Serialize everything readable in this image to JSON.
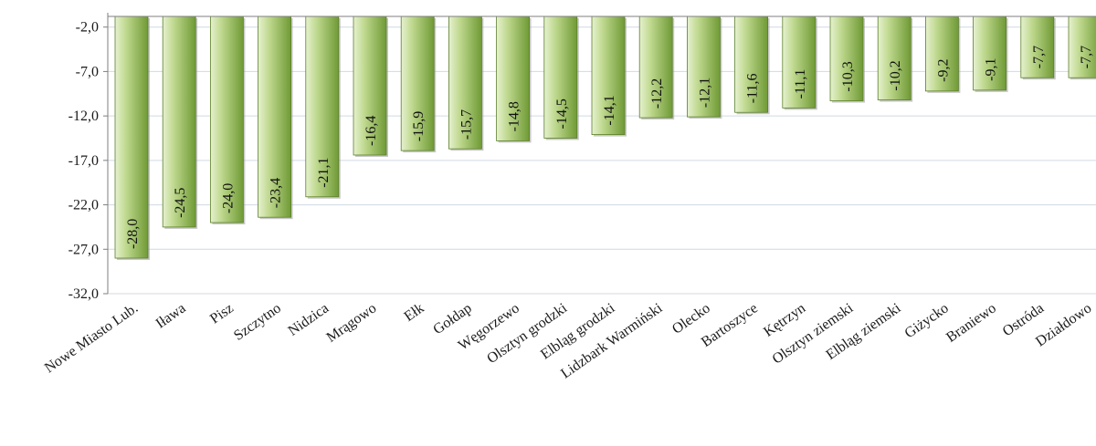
{
  "chart_data": {
    "type": "bar",
    "categories": [
      "Nowe Miasto Lub.",
      "Iława",
      "Pisz",
      "Szczytno",
      "Nidzica",
      "Mrągowo",
      "Ełk",
      "Gołdap",
      "Węgorzewo",
      "Olsztyn grodzki",
      "Elbląg grodzki",
      "Lidzbark Warmiński",
      "Olecko",
      "Bartoszyce",
      "Kętrzyn",
      "Olsztyn ziemski",
      "Elbląg ziemski",
      "Giżycko",
      "Braniewo",
      "Ostróda",
      "Działdowo"
    ],
    "values": [
      -28.0,
      -24.5,
      -24.0,
      -23.4,
      -21.1,
      -16.4,
      -15.9,
      -15.7,
      -14.8,
      -14.5,
      -14.1,
      -12.2,
      -12.1,
      -11.6,
      -11.1,
      -10.3,
      -10.2,
      -9.2,
      -9.1,
      -7.7,
      -7.7
    ],
    "value_labels": [
      "-28,0",
      "-24,5",
      "-24,0",
      "-23,4",
      "-21,1",
      "-16,4",
      "-15,9",
      "-15,7",
      "-14,8",
      "-14,5",
      "-14,1",
      "-12,2",
      "-12,1",
      "-11,6",
      "-11,1",
      "-10,3",
      "-10,2",
      "-9,2",
      "-9,1",
      "-7,7",
      "-7,7"
    ],
    "y_ticks": [
      -2.0,
      -7.0,
      -12.0,
      -17.0,
      -22.0,
      -27.0,
      -32.0
    ],
    "y_tick_labels": [
      "-2,0",
      "-7,0",
      "-12,0",
      "-17,0",
      "-22,0",
      "-27,0",
      "-32,0"
    ],
    "ylim": [
      -32.0,
      0.0
    ],
    "title": "",
    "xlabel": "",
    "ylabel": "",
    "grid": true,
    "colors": {
      "bar_light": "#e6f1cf",
      "bar_mid": "#bdd78c",
      "bar_dark": "#6f9a35",
      "bar_edge": "#5c7f2b",
      "shadow": "#9a9a9a"
    }
  }
}
